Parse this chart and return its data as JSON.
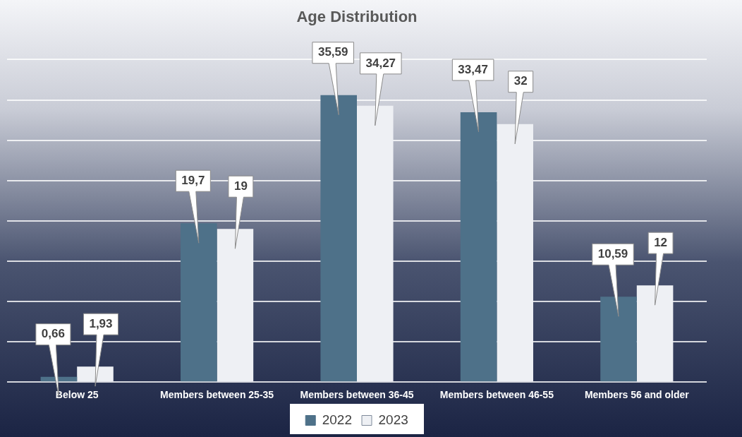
{
  "chart_data": {
    "type": "bar",
    "title": "Age Distribution",
    "categories": [
      "Below 25",
      "Members between 25-35",
      "Members between 36-45",
      "Members between 46-55",
      "Members 56 and older"
    ],
    "series": [
      {
        "name": "2022",
        "color": "#4e7189",
        "values": [
          0.66,
          19.7,
          35.59,
          33.47,
          10.59
        ],
        "value_labels": [
          "0,66",
          "19,7",
          "35,59",
          "33,47",
          "10,59"
        ]
      },
      {
        "name": "2023",
        "color": "#eef0f4",
        "values": [
          1.93,
          19,
          34.27,
          32,
          12
        ],
        "value_labels": [
          "1,93",
          "19",
          "34,27",
          "32",
          "12"
        ]
      }
    ],
    "ylim": [
      0,
      40
    ],
    "yticks": [
      {
        "value": 0,
        "label": null
      },
      {
        "value": 5,
        "label": null
      },
      {
        "value": 10,
        "label": null
      },
      {
        "value": 15,
        "label": null
      },
      {
        "value": 20,
        "label": null
      },
      {
        "value": 25,
        "label": null
      },
      {
        "value": 30,
        "label": null
      },
      {
        "value": 35,
        "label": null
      },
      {
        "value": 40,
        "label": null
      }
    ],
    "tick_labels": "x",
    "grid": "y",
    "legend": "bottom"
  }
}
